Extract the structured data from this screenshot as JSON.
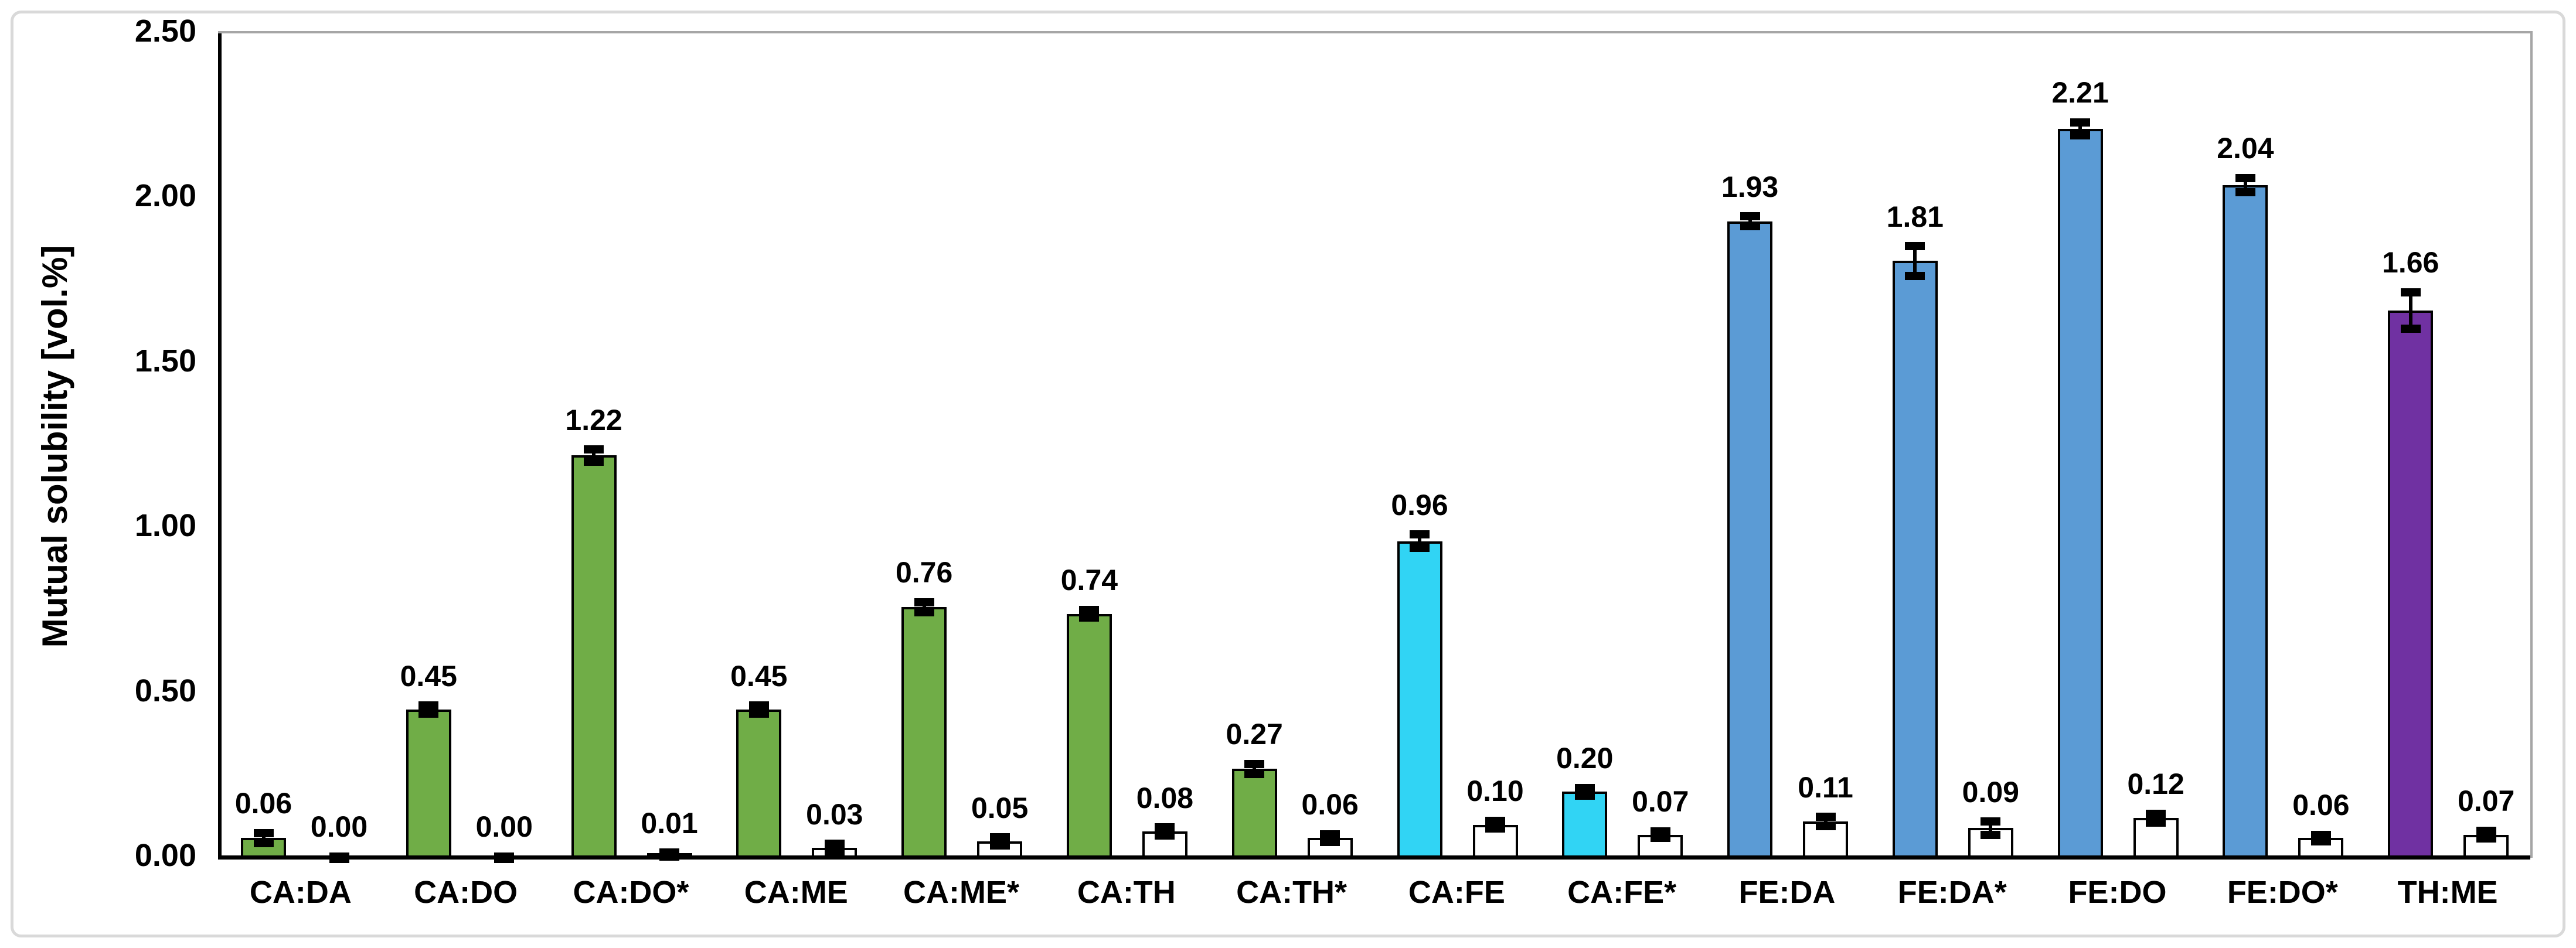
{
  "chart_data": {
    "type": "bar",
    "title": "",
    "xlabel": "",
    "ylabel": "Mutual solubility [vol.%]",
    "ylim": [
      0,
      2.5
    ],
    "ytick_step": 0.5,
    "ytick_labels": [
      "0.00",
      "0.50",
      "1.00",
      "1.50",
      "2.00",
      "2.50"
    ],
    "grid": false,
    "legend_position": "none",
    "categories": [
      "CA:DA",
      "CA:DO",
      "CA:DO*",
      "CA:ME",
      "CA:ME*",
      "CA:TH",
      "CA:TH*",
      "CA:FE",
      "CA:FE*",
      "FE:DA",
      "FE:DA*",
      "FE:DO",
      "FE:DO*",
      "TH:ME"
    ],
    "series": [
      {
        "id": "filled-bars",
        "values": [
          0.06,
          0.45,
          1.22,
          0.45,
          0.76,
          0.74,
          0.27,
          0.96,
          0.2,
          1.93,
          1.81,
          2.21,
          2.04,
          1.66
        ],
        "labels": [
          "0.06",
          "0.45",
          "1.22",
          "0.45",
          "0.76",
          "0.74",
          "0.27",
          "0.96",
          "0.20",
          "1.93",
          "1.81",
          "2.21",
          "2.04",
          "1.66"
        ],
        "errors": [
          0.015,
          0.012,
          0.018,
          0.012,
          0.015,
          0.012,
          0.015,
          0.02,
          0.012,
          0.015,
          0.045,
          0.02,
          0.022,
          0.055
        ],
        "colors": [
          "#70AD47",
          "#70AD47",
          "#70AD47",
          "#70AD47",
          "#70AD47",
          "#70AD47",
          "#70AD47",
          "#31D4F4",
          "#31D4F4",
          "#5B9BD5",
          "#5B9BD5",
          "#5B9BD5",
          "#5B9BD5",
          "#7031A2"
        ]
      },
      {
        "id": "open-bars",
        "values": [
          0.0,
          0.0,
          0.01,
          0.03,
          0.05,
          0.08,
          0.06,
          0.1,
          0.07,
          0.11,
          0.09,
          0.12,
          0.06,
          0.07
        ],
        "labels": [
          "0.00",
          "0.00",
          "0.01",
          "0.03",
          "0.05",
          "0.08",
          "0.06",
          "0.10",
          "0.07",
          "0.11",
          "0.09",
          "0.12",
          "0.06",
          "0.07"
        ],
        "errors": [
          0.004,
          0.004,
          0.006,
          0.012,
          0.012,
          0.012,
          0.012,
          0.012,
          0.01,
          0.014,
          0.02,
          0.014,
          0.01,
          0.012
        ],
        "colors": [
          "#FFFFFF",
          "#FFFFFF",
          "#FFFFFF",
          "#FFFFFF",
          "#FFFFFF",
          "#FFFFFF",
          "#FFFFFF",
          "#FFFFFF",
          "#FFFFFF",
          "#FFFFFF",
          "#FFFFFF",
          "#FFFFFF",
          "#FFFFFF",
          "#FFFFFF"
        ]
      }
    ],
    "styles": {
      "bar_edge_color": "#000000",
      "error_bar_color": "#000000",
      "axis_color": "#000000",
      "frame_color": "#a6a6a6",
      "outer_border_color": "#d9d9d9",
      "background": "#ffffff"
    }
  }
}
